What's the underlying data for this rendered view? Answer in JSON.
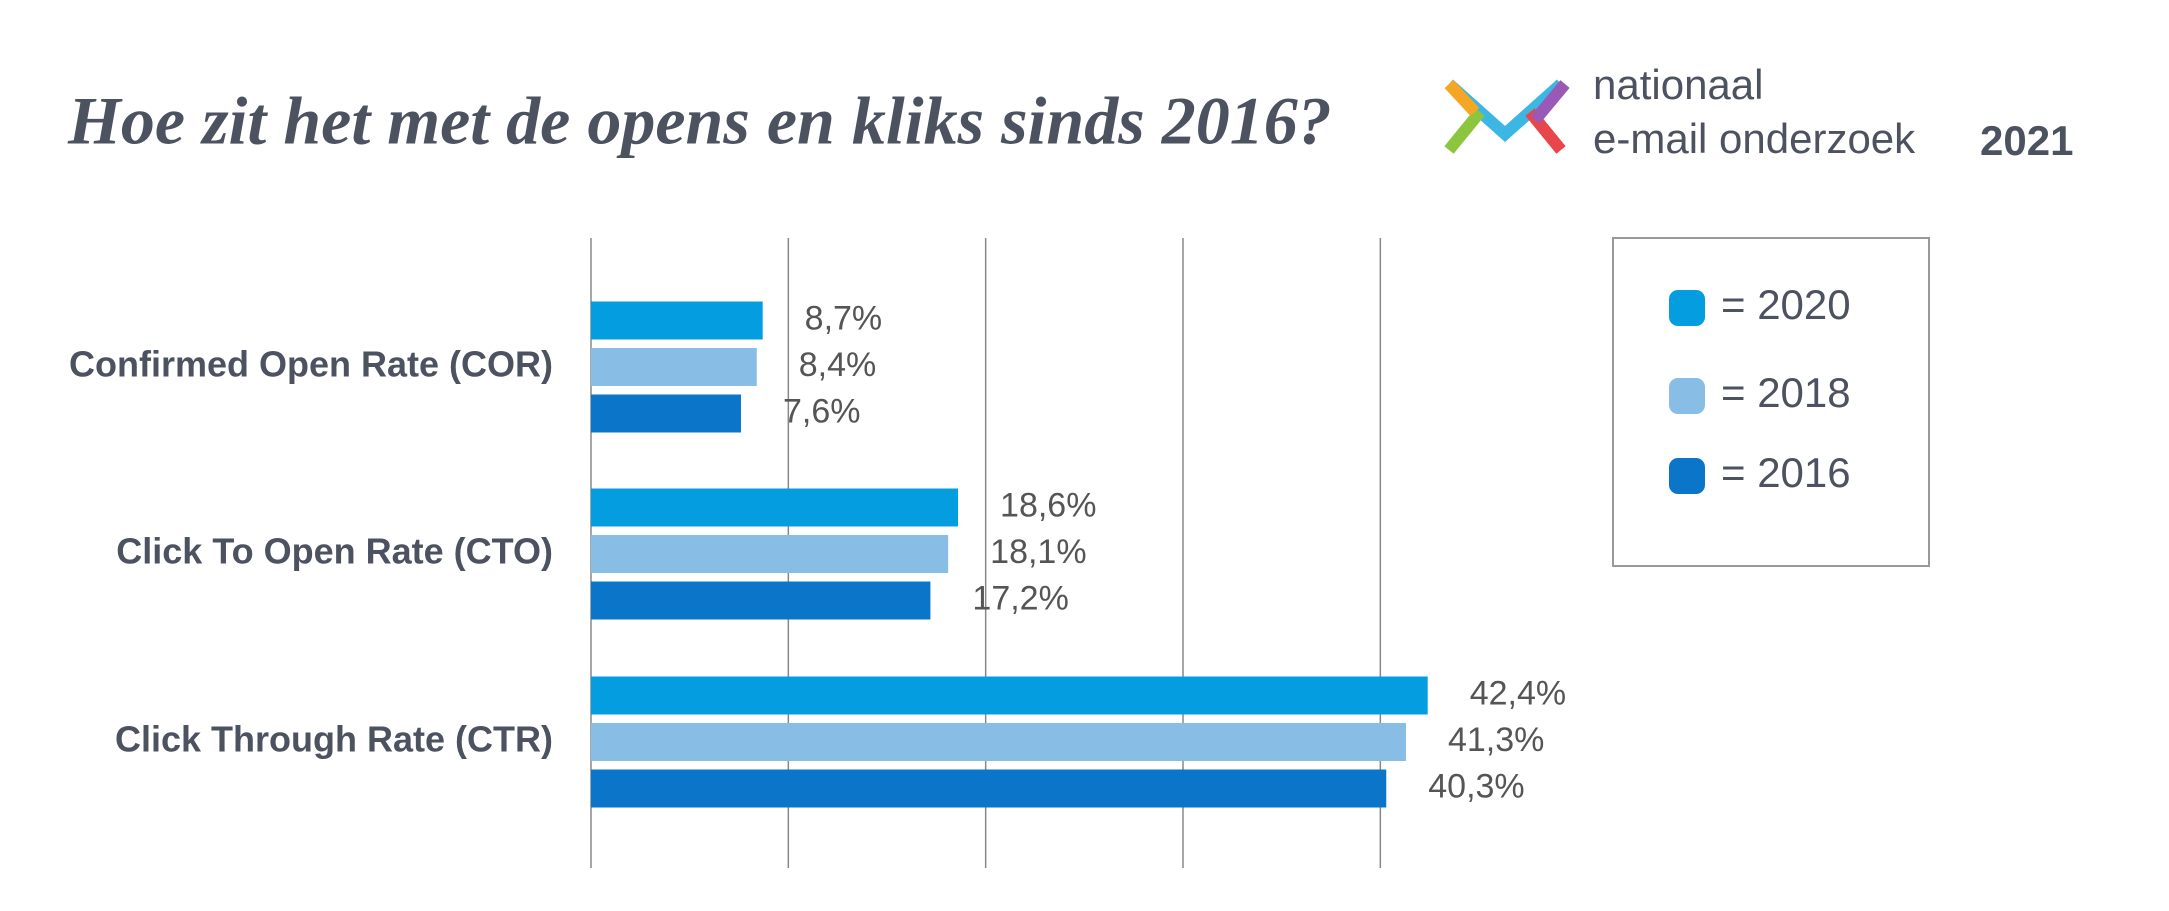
{
  "chart_data": {
    "type": "bar",
    "orientation": "horizontal",
    "title": "Hoe zit het met de opens en kliks sinds 2016?",
    "brand": {
      "line1": "nationaal",
      "line2": "e-mail onderzoek",
      "year": "2021"
    },
    "categories": [
      "Confirmed Open Rate (COR)",
      "Click To Open Rate (CTO)",
      "Click Through Rate (CTR)"
    ],
    "series": [
      {
        "name": "= 2020",
        "color": "#049ddf",
        "values": [
          8.7,
          18.6,
          42.4
        ],
        "value_labels": [
          "8,7%",
          "18,6%",
          "42,4%"
        ]
      },
      {
        "name": "= 2018",
        "color": "#88bde6",
        "values": [
          8.4,
          18.1,
          41.3
        ],
        "value_labels": [
          "8,4%",
          "18,1%",
          "41,3%"
        ]
      },
      {
        "name": "= 2016",
        "color": "#0b76c9",
        "values": [
          7.6,
          17.2,
          40.3
        ],
        "value_labels": [
          "7,6%",
          "17,2%",
          "40,3%"
        ]
      }
    ],
    "xlim": [
      0,
      45
    ],
    "xticks": [
      0,
      10,
      20,
      30,
      40
    ],
    "grid": true
  }
}
